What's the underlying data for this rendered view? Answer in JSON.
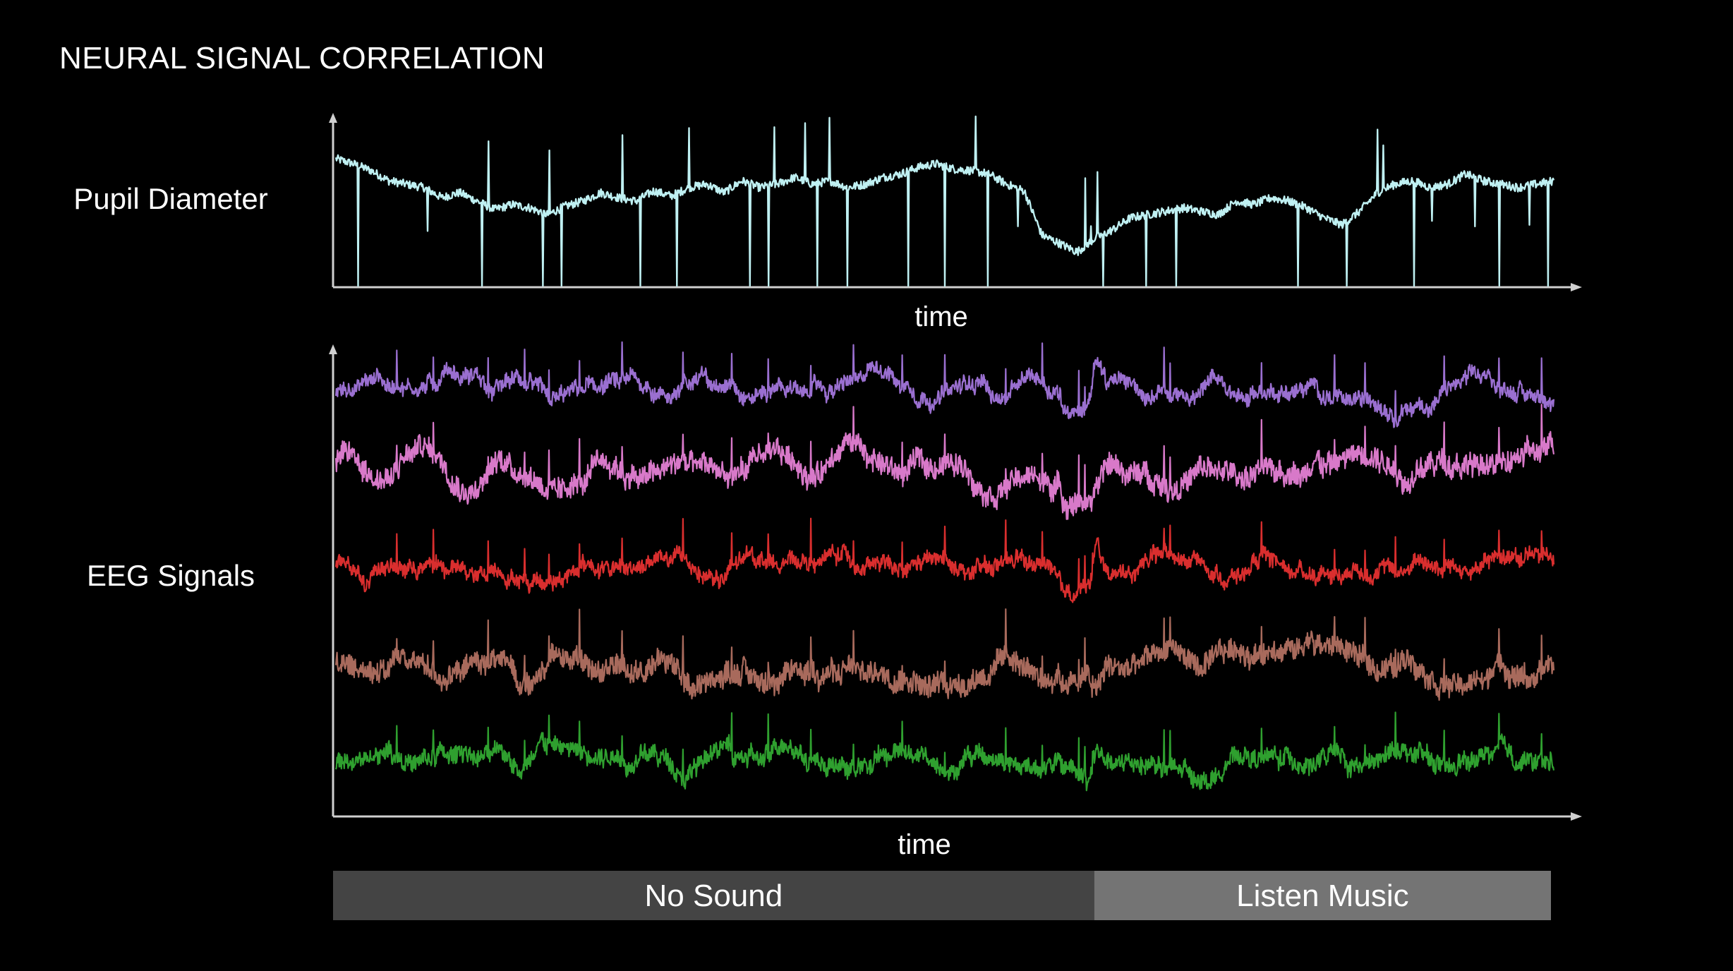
{
  "title": "NEURAL SIGNAL CORRELATION",
  "chart_data": [
    {
      "type": "line",
      "row_label": "Pupil Diameter",
      "xlabel": "time",
      "x_ticks": "none",
      "y_ticks": "none",
      "x_range": [
        0,
        1
      ],
      "series": [
        {
          "color": "#bff0f2",
          "values": [
            0.75,
            0.72,
            0.68,
            0.62,
            0.6,
            0.58,
            0.52,
            0.55,
            0.5,
            0.45,
            0.48,
            0.46,
            0.42,
            0.47,
            0.5,
            0.55,
            0.52,
            0.5,
            0.56,
            0.53,
            0.58,
            0.6,
            0.55,
            0.62,
            0.58,
            0.6,
            0.64,
            0.6,
            0.62,
            0.58,
            0.6,
            0.64,
            0.66,
            0.7,
            0.72,
            0.69,
            0.68,
            0.66,
            0.6,
            0.56,
            0.3,
            0.25,
            0.2,
            0.28,
            0.33,
            0.4,
            0.42,
            0.44,
            0.46,
            0.44,
            0.42,
            0.5,
            0.48,
            0.52,
            0.5,
            0.46,
            0.4,
            0.36,
            0.44,
            0.55,
            0.6,
            0.62,
            0.58,
            0.6,
            0.66,
            0.62,
            0.6,
            0.58,
            0.6,
            0.62
          ]
        }
      ],
      "spikes_down": [
        0.018,
        0.075,
        0.12,
        0.185,
        0.17,
        0.25,
        0.28,
        0.34,
        0.355,
        0.395,
        0.42,
        0.47,
        0.5,
        0.535,
        0.56,
        0.62,
        0.63,
        0.665,
        0.69,
        0.79,
        0.83,
        0.885,
        0.9,
        0.935,
        0.955,
        0.98,
        0.995
      ],
      "spikes_up": [
        0.075,
        0.125,
        0.175,
        0.235,
        0.29,
        0.36,
        0.385,
        0.405,
        0.525,
        0.56,
        0.615,
        0.625,
        0.62,
        0.855,
        0.86,
        0.9,
        0.935,
        0.98
      ]
    },
    {
      "type": "line",
      "row_label": "EEG Signals",
      "xlabel": "time",
      "x_ticks": "none",
      "y_ticks": "none",
      "x_range": [
        0,
        1
      ],
      "series": [
        {
          "color": "#9a6fd0",
          "offset": 0.88,
          "amplitude": 0.05
        },
        {
          "color": "#d879c9",
          "offset": 0.71,
          "amplitude": 0.08
        },
        {
          "color": "#d92e2e",
          "offset": 0.51,
          "amplitude": 0.05
        },
        {
          "color": "#a86a5c",
          "offset": 0.3,
          "amplitude": 0.08
        },
        {
          "color": "#2fa02f",
          "offset": 0.1,
          "amplitude": 0.06
        }
      ],
      "spikes": [
        0.05,
        0.08,
        0.125,
        0.155,
        0.175,
        0.2,
        0.235,
        0.285,
        0.325,
        0.355,
        0.39,
        0.425,
        0.465,
        0.5,
        0.55,
        0.58,
        0.61,
        0.615,
        0.68,
        0.685,
        0.76,
        0.82,
        0.845,
        0.87,
        0.91,
        0.955,
        0.99
      ]
    }
  ],
  "conditions": [
    {
      "label": "No Sound",
      "start": 0.0,
      "end": 0.625,
      "color": "#444444"
    },
    {
      "label": "Listen Music",
      "start": 0.625,
      "end": 1.0,
      "color": "#747474"
    }
  ]
}
